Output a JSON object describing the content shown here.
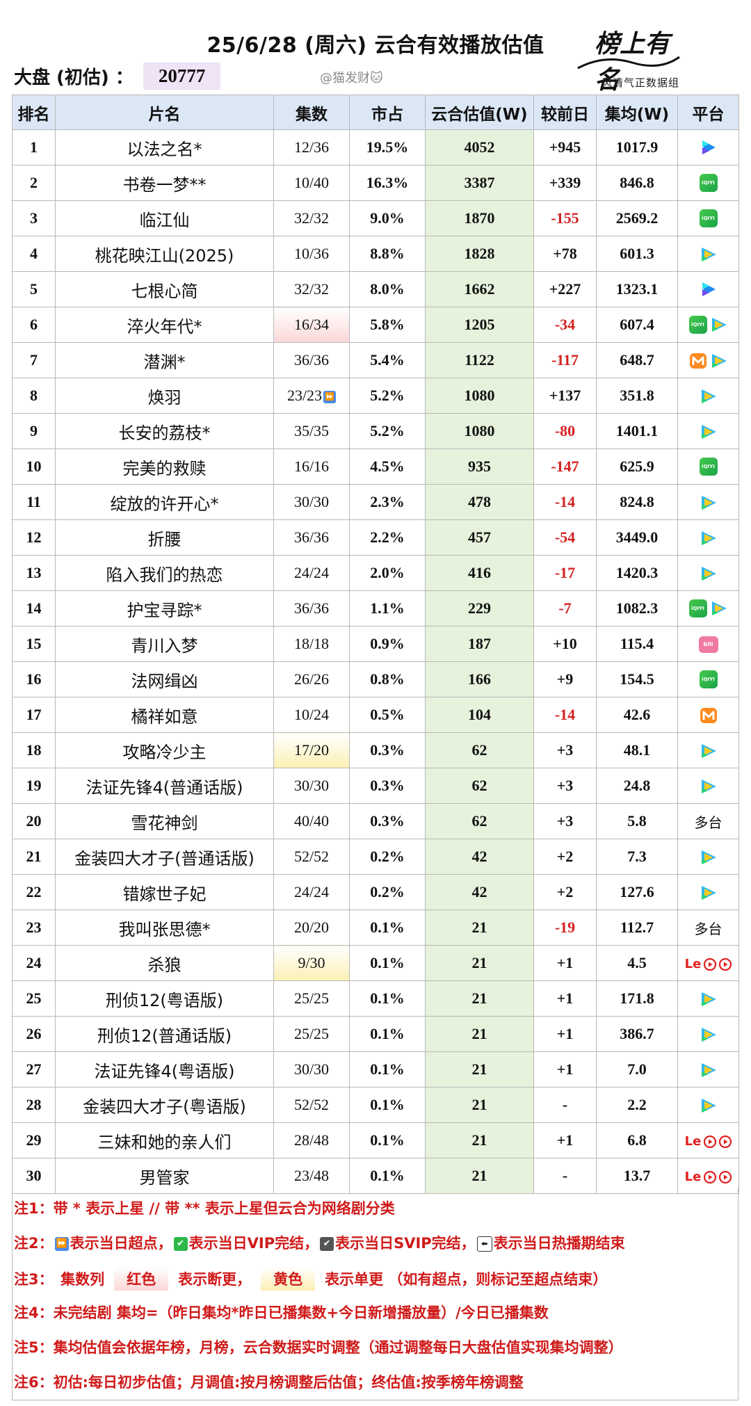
{
  "header": {
    "title": "25/6/28 (周六) 云合有效播放估值",
    "market_label": "大盘 (初估) ：",
    "market_value": "20777",
    "watermark": "@猫发财🐱",
    "logo_script": "榜上有名",
    "logo_sub": "风清气正数据组"
  },
  "table": {
    "columns": [
      "排名",
      "片名",
      "集数",
      "市占",
      "云合估值(W)",
      "较前日",
      "集均(W)",
      "平台"
    ],
    "rows": [
      {
        "rank": "1",
        "name": "以法之名*",
        "episodes": "12/36",
        "share": "19.5%",
        "estimate": "4052",
        "delta": "+945",
        "avg": "1017.9",
        "platforms": [
          "youku"
        ]
      },
      {
        "rank": "2",
        "name": "书卷一梦**",
        "episodes": "10/40",
        "share": "16.3%",
        "estimate": "3387",
        "delta": "+339",
        "avg": "846.8",
        "platforms": [
          "iqiyi"
        ]
      },
      {
        "rank": "3",
        "name": "临江仙",
        "episodes": "32/32",
        "share": "9.0%",
        "estimate": "1870",
        "delta": "-155",
        "avg": "2569.2",
        "platforms": [
          "iqiyi"
        ]
      },
      {
        "rank": "4",
        "name": "桃花映江山(2025)",
        "episodes": "10/36",
        "share": "8.8%",
        "estimate": "1828",
        "delta": "+78",
        "avg": "601.3",
        "platforms": [
          "tencent"
        ]
      },
      {
        "rank": "5",
        "name": "七根心简",
        "episodes": "32/32",
        "share": "8.0%",
        "estimate": "1662",
        "delta": "+227",
        "avg": "1323.1",
        "platforms": [
          "youku"
        ]
      },
      {
        "rank": "6",
        "name": "淬火年代*",
        "episodes": "16/34",
        "share": "5.8%",
        "estimate": "1205",
        "delta": "-34",
        "avg": "607.4",
        "platforms": [
          "iqiyi",
          "tencent"
        ],
        "ep_mark": "red"
      },
      {
        "rank": "7",
        "name": "潜渊*",
        "episodes": "36/36",
        "share": "5.4%",
        "estimate": "1122",
        "delta": "-117",
        "avg": "648.7",
        "platforms": [
          "mango",
          "tencent"
        ]
      },
      {
        "rank": "8",
        "name": "焕羽",
        "episodes": "23/23",
        "share": "5.2%",
        "estimate": "1080",
        "delta": "+137",
        "avg": "351.8",
        "platforms": [
          "tencent"
        ],
        "ep_icon": "⏩"
      },
      {
        "rank": "9",
        "name": "长安的荔枝*",
        "episodes": "35/35",
        "share": "5.2%",
        "estimate": "1080",
        "delta": "-80",
        "avg": "1401.1",
        "platforms": [
          "tencent"
        ]
      },
      {
        "rank": "10",
        "name": "完美的救赎",
        "episodes": "16/16",
        "share": "4.5%",
        "estimate": "935",
        "delta": "-147",
        "avg": "625.9",
        "platforms": [
          "iqiyi"
        ]
      },
      {
        "rank": "11",
        "name": "绽放的许开心*",
        "episodes": "30/30",
        "share": "2.3%",
        "estimate": "478",
        "delta": "-14",
        "avg": "824.8",
        "platforms": [
          "tencent"
        ]
      },
      {
        "rank": "12",
        "name": "折腰",
        "episodes": "36/36",
        "share": "2.2%",
        "estimate": "457",
        "delta": "-54",
        "avg": "3449.0",
        "platforms": [
          "tencent"
        ]
      },
      {
        "rank": "13",
        "name": "陷入我们的热恋",
        "episodes": "24/24",
        "share": "2.0%",
        "estimate": "416",
        "delta": "-17",
        "avg": "1420.3",
        "platforms": [
          "tencent"
        ]
      },
      {
        "rank": "14",
        "name": "护宝寻踪*",
        "episodes": "36/36",
        "share": "1.1%",
        "estimate": "229",
        "delta": "-7",
        "avg": "1082.3",
        "platforms": [
          "iqiyi",
          "tencent"
        ]
      },
      {
        "rank": "15",
        "name": "青川入梦",
        "episodes": "18/18",
        "share": "0.9%",
        "estimate": "187",
        "delta": "+10",
        "avg": "115.4",
        "platforms": [
          "bilibili"
        ]
      },
      {
        "rank": "16",
        "name": "法网缉凶",
        "episodes": "26/26",
        "share": "0.8%",
        "estimate": "166",
        "delta": "+9",
        "avg": "154.5",
        "platforms": [
          "iqiyi"
        ]
      },
      {
        "rank": "17",
        "name": "橘祥如意",
        "episodes": "10/24",
        "share": "0.5%",
        "estimate": "104",
        "delta": "-14",
        "avg": "42.6",
        "platforms": [
          "mango"
        ]
      },
      {
        "rank": "18",
        "name": "攻略冷少主",
        "episodes": "17/20",
        "share": "0.3%",
        "estimate": "62",
        "delta": "+3",
        "avg": "48.1",
        "platforms": [
          "tencent"
        ],
        "ep_mark": "yellow"
      },
      {
        "rank": "19",
        "name": "法证先锋4(普通话版)",
        "episodes": "30/30",
        "share": "0.3%",
        "estimate": "62",
        "delta": "+3",
        "avg": "24.8",
        "platforms": [
          "tencent"
        ]
      },
      {
        "rank": "20",
        "name": "雪花神剑",
        "episodes": "40/40",
        "share": "0.3%",
        "estimate": "62",
        "delta": "+3",
        "avg": "5.8",
        "platforms_text": "多台"
      },
      {
        "rank": "21",
        "name": "金装四大才子(普通话版)",
        "episodes": "52/52",
        "share": "0.2%",
        "estimate": "42",
        "delta": "+2",
        "avg": "7.3",
        "platforms": [
          "tencent"
        ]
      },
      {
        "rank": "22",
        "name": "错嫁世子妃",
        "episodes": "24/24",
        "share": "0.2%",
        "estimate": "42",
        "delta": "+2",
        "avg": "127.6",
        "platforms": [
          "tencent"
        ]
      },
      {
        "rank": "23",
        "name": "我叫张思德*",
        "episodes": "20/20",
        "share": "0.1%",
        "estimate": "21",
        "delta": "-19",
        "avg": "112.7",
        "platforms_text": "多台"
      },
      {
        "rank": "24",
        "name": "杀狼",
        "episodes": "9/30",
        "share": "0.1%",
        "estimate": "21",
        "delta": "+1",
        "avg": "4.5",
        "platforms": [
          "le",
          "play",
          "play"
        ],
        "ep_mark": "yellow"
      },
      {
        "rank": "25",
        "name": "刑侦12(粤语版)",
        "episodes": "25/25",
        "share": "0.1%",
        "estimate": "21",
        "delta": "+1",
        "avg": "171.8",
        "platforms": [
          "tencent"
        ]
      },
      {
        "rank": "26",
        "name": "刑侦12(普通话版)",
        "episodes": "25/25",
        "share": "0.1%",
        "estimate": "21",
        "delta": "+1",
        "avg": "386.7",
        "platforms": [
          "tencent"
        ]
      },
      {
        "rank": "27",
        "name": "法证先锋4(粤语版)",
        "episodes": "30/30",
        "share": "0.1%",
        "estimate": "21",
        "delta": "+1",
        "avg": "7.0",
        "platforms": [
          "tencent"
        ]
      },
      {
        "rank": "28",
        "name": "金装四大才子(粤语版)",
        "episodes": "52/52",
        "share": "0.1%",
        "estimate": "21",
        "delta": "-",
        "avg": "2.2",
        "platforms": [
          "tencent"
        ]
      },
      {
        "rank": "29",
        "name": "三妹和她的亲人们",
        "episodes": "28/48",
        "share": "0.1%",
        "estimate": "21",
        "delta": "+1",
        "avg": "6.8",
        "platforms": [
          "le",
          "play",
          "play"
        ]
      },
      {
        "rank": "30",
        "name": "男管家",
        "episodes": "23/48",
        "share": "0.1%",
        "estimate": "21",
        "delta": "-",
        "avg": "13.7",
        "platforms": [
          "le",
          "play",
          "play"
        ]
      }
    ]
  },
  "notes": {
    "n1": "注1：带 * 表示上星 // 带 ** 表示上星但云合为网络剧分类",
    "n2_a": "注2：",
    "n2_b": "表示当日超点，",
    "n2_c": "表示当日VIP完结，",
    "n2_d": "表示当日SVIP完结，",
    "n2_e": "表示当日热播期结束",
    "n3_a": "注3：　集数列",
    "n3_red": "红色",
    "n3_b": "表示断更，",
    "n3_yellow": "黄色",
    "n3_c": "表示单更 （如有超点，则标记至超点结束）",
    "n4": "注4：未完结剧 集均=（昨日集均*昨日已播集数+今日新增播放量）/今日已播集数",
    "n5": "注5：集均估值会依据年榜，月榜，云合数据实时调整（通过调整每日大盘估值实现集均调整）",
    "n6": "注6：初估:每日初步估值；月调值:按月榜调整后估值；终估值:按季榜年榜调整"
  },
  "colors": {
    "header_bg": "#dbe7f5",
    "estimate_bg": "#e6f2dc",
    "negative": "#d42020",
    "note_text": "#d01a1a",
    "market_bg": "#efe3f6"
  }
}
